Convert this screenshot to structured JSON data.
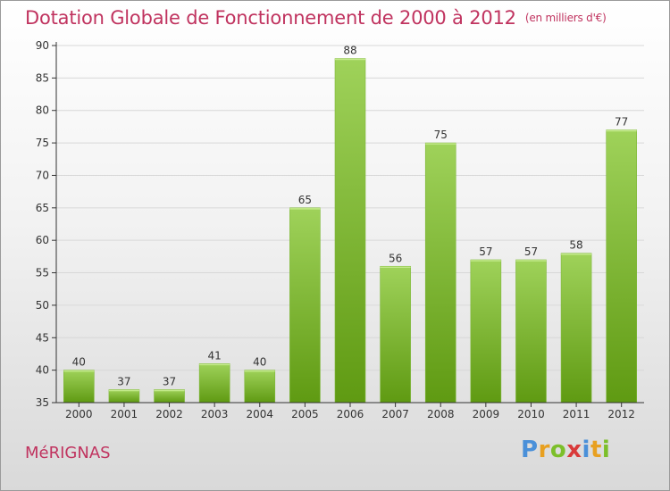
{
  "title": "Dotation Globale de Fonctionnement de 2000 à 2012",
  "subtitle": "(en milliers d'€)",
  "commune": "MéRIGNAS",
  "logo": {
    "text": "Proxiti",
    "colors": [
      "#4a90d9",
      "#e8a020",
      "#7cbf2a",
      "#d93a3a",
      "#4a90d9",
      "#e8a020",
      "#7cbf2a"
    ]
  },
  "colors": {
    "title": "#c0335f",
    "bar_top": "#9fd25a",
    "bar_bottom": "#5f9a12",
    "axis": "#333333",
    "grid": "#d8d8d8"
  },
  "chart_data": {
    "type": "bar",
    "categories": [
      "2000",
      "2001",
      "2002",
      "2003",
      "2004",
      "2005",
      "2006",
      "2007",
      "2008",
      "2009",
      "2010",
      "2011",
      "2012"
    ],
    "values": [
      40,
      37,
      37,
      41,
      40,
      65,
      88,
      56,
      75,
      57,
      57,
      58,
      77
    ],
    "ylim": [
      35,
      90
    ],
    "yticks": [
      35,
      40,
      45,
      50,
      55,
      60,
      65,
      70,
      75,
      80,
      85,
      90
    ],
    "grid": true,
    "title": "Dotation Globale de Fonctionnement de 2000 à 2012",
    "xlabel": "",
    "ylabel": ""
  }
}
